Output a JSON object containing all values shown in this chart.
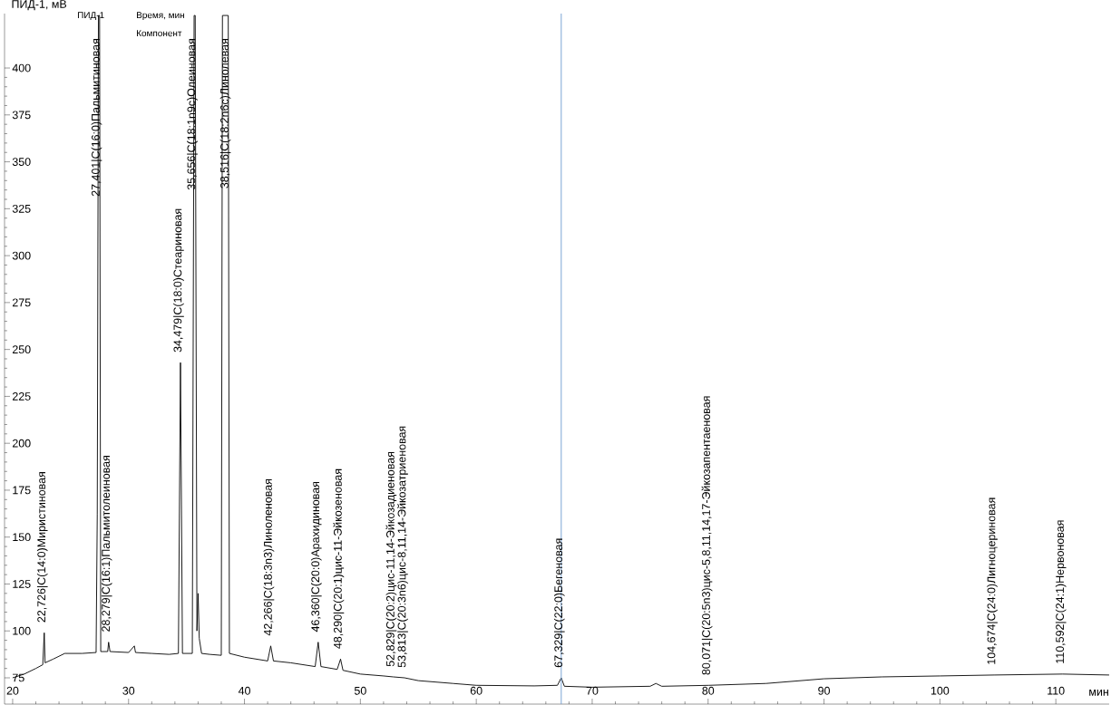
{
  "chart_data": {
    "type": "line",
    "xlabel": "мин",
    "ylabel": "ПИД-1, мВ",
    "x": [
      20.0,
      21.0,
      22.0,
      22.6,
      22.726,
      22.8,
      23.5,
      24.5,
      26.0,
      27.2,
      27.3,
      27.401,
      27.5,
      27.6,
      28.2,
      28.279,
      28.4,
      30.0,
      30.5,
      30.6,
      32.0,
      33.5,
      34.3,
      34.479,
      34.65,
      35.5,
      35.656,
      35.75,
      35.9,
      36.0,
      36.1,
      36.3,
      37.0,
      38.0,
      38.1,
      38.516,
      38.6,
      38.7,
      40.0,
      42.0,
      42.266,
      42.5,
      44.0,
      46.1,
      46.36,
      46.6,
      48.0,
      48.29,
      48.5,
      50.0,
      52.0,
      52.829,
      53.813,
      55.0,
      58.0,
      60.0,
      65.0,
      67.0,
      67.329,
      67.6,
      70.0,
      75.0,
      75.5,
      76.0,
      80.071,
      85.0,
      90.0,
      95.0,
      100.0,
      104.674,
      110.592,
      114.6
    ],
    "values": [
      75,
      77,
      80,
      82,
      99,
      83,
      85,
      88,
      88,
      88.5,
      162,
      428,
      428,
      89,
      89,
      94,
      89,
      88.5,
      92,
      88.5,
      88,
      87.5,
      88,
      243,
      88,
      88,
      428,
      428,
      100,
      120,
      96,
      88,
      87.5,
      87,
      428,
      428,
      428,
      88,
      86,
      84,
      92,
      84,
      83,
      81,
      94,
      81,
      79.5,
      85,
      79,
      77,
      76,
      75.5,
      75,
      73.5,
      72,
      71,
      70.7,
      71,
      75,
      70.5,
      70,
      70.5,
      72,
      70.5,
      71,
      72,
      74.5,
      75.5,
      76,
      76.5,
      77,
      76.5
    ],
    "color": "#000000",
    "xlim": [
      19.3,
      114.6
    ],
    "ylim": [
      61,
      429
    ],
    "xticks": [
      20,
      30,
      40,
      50,
      60,
      70,
      80,
      90,
      100,
      110
    ],
    "yticks": [
      75,
      100,
      125,
      150,
      175,
      200,
      225,
      250,
      275,
      300,
      325,
      350,
      375,
      400
    ],
    "grid": false,
    "ref_lines": [
      {
        "axis": "x",
        "value": 67.33,
        "color": "#7ba4d4"
      }
    ],
    "annotations": [
      "ПИД-1",
      "Время, мин",
      "Компонент",
      {
        "text": "22,726|C(14:0)Миристиновая",
        "x": 22.726,
        "y": 99
      },
      {
        "text": "27,401|C(16:0)Пальмитиновая",
        "x": 27.401,
        "y": 428
      },
      {
        "text": "28,279|C(16:1)Пальмитолеиновая",
        "x": 28.279,
        "y": 94
      },
      {
        "text": "34,479|C(18:0)Стеариновая",
        "x": 34.479,
        "y": 243
      },
      {
        "text": "35,656|C(18:1n9c)Олеиновая",
        "x": 35.656,
        "y": 428
      },
      {
        "text": "38,516|C(18:2n6c)Линолевая",
        "x": 38.516,
        "y": 428
      },
      {
        "text": "42,266|C(18:3n3)Линоленовая",
        "x": 42.266,
        "y": 92
      },
      {
        "text": "46,360|C(20:0)Арахидиновая",
        "x": 46.36,
        "y": 94
      },
      {
        "text": "48,290|C(20:1)цис-11-Эйкозеновая",
        "x": 48.29,
        "y": 85
      },
      {
        "text": "52,829|C(20:2)цис-11,14-Эйкозадиеновая",
        "x": 52.829,
        "y": 75.5
      },
      {
        "text": "53,813|C(20:3n6)цис-8,11,14-Эйкозатриеновая",
        "x": 53.813,
        "y": 75
      },
      {
        "text": "67,329|C(22:0)Бегеновая",
        "x": 67.329,
        "y": 75
      },
      {
        "text": "80,071|C(20:5n3)цис-5,8,11,14,17-Эйкозапентаеновая",
        "x": 80.071,
        "y": 71
      },
      {
        "text": "104,674|C(24:0)Лигноцериновая",
        "x": 104.674,
        "y": 76.5
      },
      {
        "text": "110,592|C(24:1)Нервоновая",
        "x": 110.592,
        "y": 77
      }
    ]
  }
}
